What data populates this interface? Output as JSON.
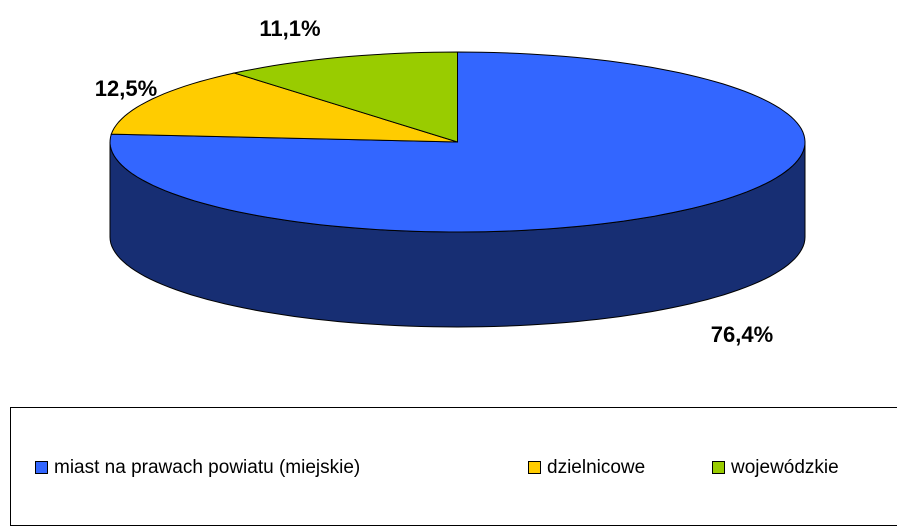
{
  "chart_data": {
    "type": "pie3d",
    "categories": [
      "miast na prawach powiatu (miejskie)",
      "dzielnicowe",
      "wojewódzkie"
    ],
    "values": [
      76.4,
      12.5,
      11.1
    ],
    "value_labels": [
      "76,4%",
      "12,5%",
      "11,1%"
    ],
    "colors": [
      "#3366ff",
      "#ffcc00",
      "#99cc00"
    ],
    "legend": "bottom"
  }
}
